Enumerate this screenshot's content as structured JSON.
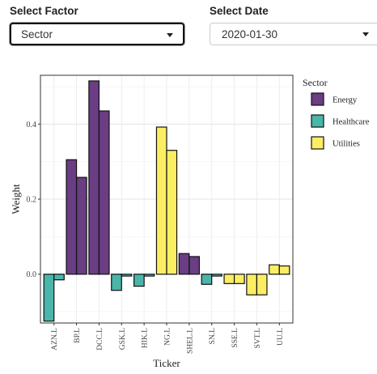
{
  "filters": {
    "factor_label": "Select Factor",
    "factor_value": "Sector",
    "date_label": "Select Date",
    "date_value": "2020-01-30"
  },
  "colors": {
    "Energy": "#6a3d84",
    "Healthcare": "#4ab5a9",
    "Utilities": "#fbee62"
  },
  "chart_data": {
    "type": "bar",
    "title": "",
    "xlabel": "Ticker",
    "ylabel": "Weight",
    "ylim": [
      -0.13,
      0.53
    ],
    "yticks": [
      0.0,
      0.2,
      0.4
    ],
    "ytick_labels": [
      "0.0",
      "0.2",
      "0.4"
    ],
    "grid": true,
    "legend": {
      "title": "Sector",
      "placement": "right",
      "entries": [
        "Energy",
        "Healthcare",
        "Utilities"
      ]
    },
    "categories": [
      "AZN.L",
      "BP.L",
      "DCC.L",
      "GSK.L",
      "HIK.L",
      "NG.L",
      "SHEL.L",
      "SN.L",
      "SSE.L",
      "SVT.L",
      "UU.L"
    ],
    "bars": [
      {
        "ticker": "AZN.L",
        "sector": "Healthcare",
        "value": -0.125
      },
      {
        "ticker": "AZN.L",
        "sector": "Healthcare",
        "value": -0.015
      },
      {
        "ticker": "BP.L",
        "sector": "Energy",
        "value": 0.305
      },
      {
        "ticker": "BP.L",
        "sector": "Energy",
        "value": 0.258
      },
      {
        "ticker": "DCC.L",
        "sector": "Energy",
        "value": 0.515
      },
      {
        "ticker": "DCC.L",
        "sector": "Energy",
        "value": 0.435
      },
      {
        "ticker": "GSK.L",
        "sector": "Healthcare",
        "value": -0.043
      },
      {
        "ticker": "GSK.L",
        "sector": "Healthcare",
        "value": -0.005
      },
      {
        "ticker": "HIK.L",
        "sector": "Healthcare",
        "value": -0.032
      },
      {
        "ticker": "HIK.L",
        "sector": "Healthcare",
        "value": -0.005
      },
      {
        "ticker": "NG.L",
        "sector": "Utilities",
        "value": 0.392
      },
      {
        "ticker": "NG.L",
        "sector": "Utilities",
        "value": 0.33
      },
      {
        "ticker": "SHEL.L",
        "sector": "Energy",
        "value": 0.055
      },
      {
        "ticker": "SHEL.L",
        "sector": "Energy",
        "value": 0.047
      },
      {
        "ticker": "SN.L",
        "sector": "Healthcare",
        "value": -0.027
      },
      {
        "ticker": "SN.L",
        "sector": "Healthcare",
        "value": -0.005
      },
      {
        "ticker": "SSE.L",
        "sector": "Utilities",
        "value": -0.025
      },
      {
        "ticker": "SSE.L",
        "sector": "Utilities",
        "value": -0.025
      },
      {
        "ticker": "SVT.L",
        "sector": "Utilities",
        "value": -0.055
      },
      {
        "ticker": "SVT.L",
        "sector": "Utilities",
        "value": -0.055
      },
      {
        "ticker": "UU.L",
        "sector": "Utilities",
        "value": 0.025
      },
      {
        "ticker": "UU.L",
        "sector": "Utilities",
        "value": 0.022
      }
    ]
  }
}
